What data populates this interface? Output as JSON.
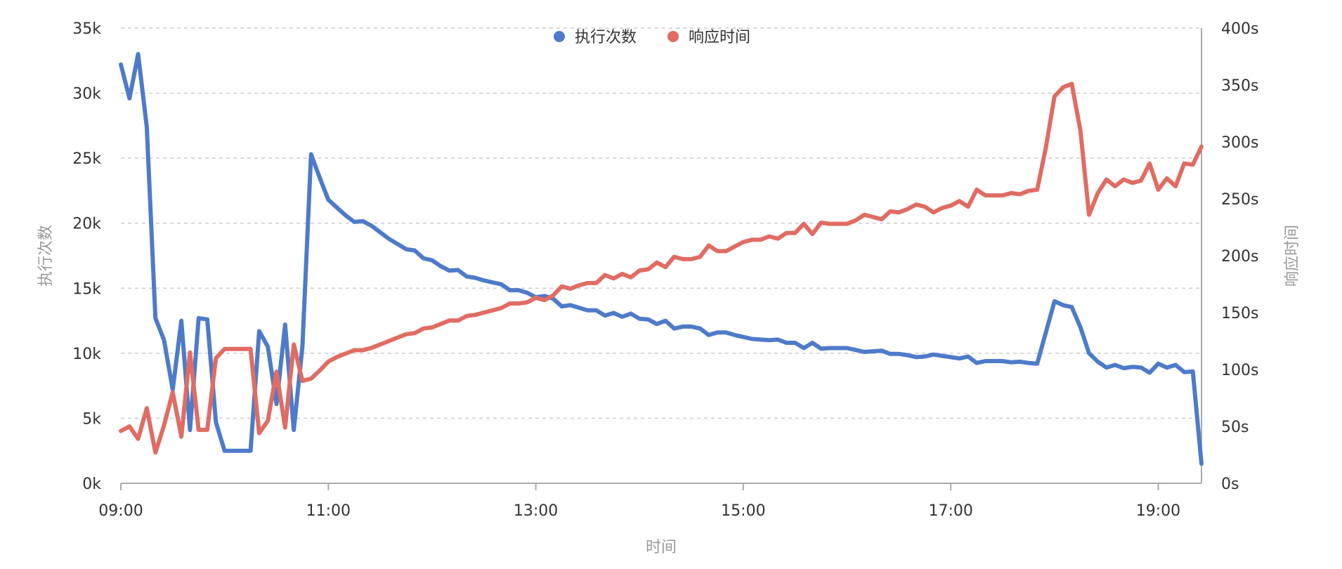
{
  "chart_data": {
    "type": "line",
    "xlabel": "时间",
    "x_ticks": [
      "09:00",
      "11:00",
      "13:00",
      "15:00",
      "17:00",
      "19:00"
    ],
    "xlim": [
      "09:00",
      "19:25"
    ],
    "y_left": {
      "label": "执行次数",
      "ticks": [
        "0k",
        "5k",
        "10k",
        "15k",
        "20k",
        "25k",
        "30k",
        "35k"
      ],
      "ylim": [
        0,
        35000
      ]
    },
    "y_right": {
      "label": "响应时间",
      "ticks": [
        "0s",
        "50s",
        "100s",
        "150s",
        "200s",
        "250s",
        "300s",
        "350s",
        "400s"
      ],
      "ylim": [
        0,
        400
      ]
    },
    "grid": true,
    "legend_position": "top-center",
    "series": [
      {
        "name": "执行次数",
        "axis": "left",
        "color": "#4e7bc9",
        "points": [
          [
            "09:00",
            32200
          ],
          [
            "09:05",
            29600
          ],
          [
            "09:10",
            33000
          ],
          [
            "09:15",
            27400
          ],
          [
            "09:20",
            12700
          ],
          [
            "09:25",
            11000
          ],
          [
            "09:30",
            7200
          ],
          [
            "09:35",
            12500
          ],
          [
            "09:40",
            4100
          ],
          [
            "09:45",
            12700
          ],
          [
            "09:50",
            12600
          ],
          [
            "09:55",
            4700
          ],
          [
            "10:00",
            2500
          ],
          [
            "10:05",
            2500
          ],
          [
            "10:10",
            2500
          ],
          [
            "10:15",
            2500
          ],
          [
            "10:20",
            11700
          ],
          [
            "10:25",
            10500
          ],
          [
            "10:30",
            6100
          ],
          [
            "10:35",
            12200
          ],
          [
            "10:40",
            4100
          ],
          [
            "10:45",
            10500
          ],
          [
            "10:50",
            25300
          ],
          [
            "10:55",
            23500
          ],
          [
            "11:00",
            21800
          ],
          [
            "11:05",
            21200
          ],
          [
            "11:10",
            20600
          ],
          [
            "11:15",
            20100
          ],
          [
            "11:20",
            20150
          ],
          [
            "11:25",
            19800
          ],
          [
            "11:30",
            19300
          ],
          [
            "11:35",
            18800
          ],
          [
            "11:40",
            18400
          ],
          [
            "11:45",
            18000
          ],
          [
            "11:50",
            17900
          ],
          [
            "11:55",
            17300
          ],
          [
            "12:00",
            17150
          ],
          [
            "12:05",
            16700
          ],
          [
            "12:10",
            16350
          ],
          [
            "12:15",
            16400
          ],
          [
            "12:20",
            15900
          ],
          [
            "12:25",
            15800
          ],
          [
            "12:30",
            15600
          ],
          [
            "12:35",
            15450
          ],
          [
            "12:40",
            15300
          ],
          [
            "12:45",
            14850
          ],
          [
            "12:50",
            14850
          ],
          [
            "12:55",
            14650
          ],
          [
            "13:00",
            14300
          ],
          [
            "13:05",
            14400
          ],
          [
            "13:10",
            14200
          ],
          [
            "13:15",
            13600
          ],
          [
            "13:20",
            13700
          ],
          [
            "13:25",
            13500
          ],
          [
            "13:30",
            13300
          ],
          [
            "13:35",
            13300
          ],
          [
            "13:40",
            12900
          ],
          [
            "13:45",
            13100
          ],
          [
            "13:50",
            12800
          ],
          [
            "13:55",
            13050
          ],
          [
            "14:00",
            12650
          ],
          [
            "14:05",
            12600
          ],
          [
            "14:10",
            12250
          ],
          [
            "14:15",
            12500
          ],
          [
            "14:20",
            11900
          ],
          [
            "14:25",
            12050
          ],
          [
            "14:30",
            12050
          ],
          [
            "14:35",
            11900
          ],
          [
            "14:40",
            11400
          ],
          [
            "14:45",
            11600
          ],
          [
            "14:50",
            11600
          ],
          [
            "14:55",
            11400
          ],
          [
            "15:00",
            11250
          ],
          [
            "15:05",
            11100
          ],
          [
            "15:10",
            11050
          ],
          [
            "15:15",
            11000
          ],
          [
            "15:20",
            11050
          ],
          [
            "15:25",
            10800
          ],
          [
            "15:30",
            10800
          ],
          [
            "15:35",
            10400
          ],
          [
            "15:40",
            10800
          ],
          [
            "15:45",
            10350
          ],
          [
            "15:50",
            10400
          ],
          [
            "15:55",
            10400
          ],
          [
            "16:00",
            10400
          ],
          [
            "16:05",
            10250
          ],
          [
            "16:10",
            10100
          ],
          [
            "16:15",
            10150
          ],
          [
            "16:20",
            10200
          ],
          [
            "16:25",
            9950
          ],
          [
            "16:30",
            9950
          ],
          [
            "16:35",
            9850
          ],
          [
            "16:40",
            9700
          ],
          [
            "16:45",
            9750
          ],
          [
            "16:50",
            9900
          ],
          [
            "16:55",
            9800
          ],
          [
            "17:00",
            9700
          ],
          [
            "17:05",
            9600
          ],
          [
            "17:10",
            9750
          ],
          [
            "17:15",
            9250
          ],
          [
            "17:20",
            9400
          ],
          [
            "17:25",
            9400
          ],
          [
            "17:30",
            9400
          ],
          [
            "17:35",
            9300
          ],
          [
            "17:40",
            9350
          ],
          [
            "17:45",
            9250
          ],
          [
            "17:50",
            9200
          ],
          [
            "18:00",
            14000
          ],
          [
            "18:05",
            13700
          ],
          [
            "18:10",
            13550
          ],
          [
            "18:15",
            12000
          ],
          [
            "18:20",
            10000
          ],
          [
            "18:25",
            9350
          ],
          [
            "18:30",
            8900
          ],
          [
            "18:35",
            9100
          ],
          [
            "18:40",
            8850
          ],
          [
            "18:45",
            8950
          ],
          [
            "18:50",
            8900
          ],
          [
            "18:55",
            8500
          ],
          [
            "19:00",
            9200
          ],
          [
            "19:05",
            8900
          ],
          [
            "19:10",
            9100
          ],
          [
            "19:15",
            8550
          ],
          [
            "19:20",
            8600
          ],
          [
            "19:25",
            1500
          ]
        ]
      },
      {
        "name": "响应时间",
        "axis": "right",
        "color": "#e06c63",
        "points": [
          [
            "09:00",
            46
          ],
          [
            "09:05",
            50
          ],
          [
            "09:10",
            39
          ],
          [
            "09:15",
            66
          ],
          [
            "09:20",
            27
          ],
          [
            "09:25",
            51
          ],
          [
            "09:30",
            80
          ],
          [
            "09:35",
            41
          ],
          [
            "09:40",
            115
          ],
          [
            "09:45",
            47
          ],
          [
            "09:50",
            47
          ],
          [
            "09:55",
            110
          ],
          [
            "10:00",
            118
          ],
          [
            "10:05",
            118
          ],
          [
            "10:10",
            118
          ],
          [
            "10:15",
            118
          ],
          [
            "10:20",
            44
          ],
          [
            "10:25",
            55
          ],
          [
            "10:30",
            98
          ],
          [
            "10:35",
            49
          ],
          [
            "10:40",
            122
          ],
          [
            "10:45",
            90
          ],
          [
            "10:50",
            92
          ],
          [
            "10:55",
            99
          ],
          [
            "11:00",
            107
          ],
          [
            "11:05",
            111
          ],
          [
            "11:10",
            114
          ],
          [
            "11:15",
            117
          ],
          [
            "11:20",
            117
          ],
          [
            "11:25",
            119
          ],
          [
            "11:30",
            122
          ],
          [
            "11:35",
            125
          ],
          [
            "11:40",
            128
          ],
          [
            "11:45",
            131
          ],
          [
            "11:50",
            132
          ],
          [
            "11:55",
            136
          ],
          [
            "12:00",
            137
          ],
          [
            "12:05",
            140
          ],
          [
            "12:10",
            143
          ],
          [
            "12:15",
            143
          ],
          [
            "12:20",
            147
          ],
          [
            "12:25",
            148
          ],
          [
            "12:30",
            150
          ],
          [
            "12:35",
            152
          ],
          [
            "12:40",
            154
          ],
          [
            "12:45",
            158
          ],
          [
            "12:50",
            158
          ],
          [
            "12:55",
            159
          ],
          [
            "13:00",
            163
          ],
          [
            "13:05",
            161
          ],
          [
            "13:10",
            165
          ],
          [
            "13:15",
            173
          ],
          [
            "13:20",
            171
          ],
          [
            "13:25",
            174
          ],
          [
            "13:30",
            176
          ],
          [
            "13:35",
            176
          ],
          [
            "13:40",
            183
          ],
          [
            "13:45",
            180
          ],
          [
            "13:50",
            184
          ],
          [
            "13:55",
            181
          ],
          [
            "14:00",
            187
          ],
          [
            "14:05",
            188
          ],
          [
            "14:10",
            194
          ],
          [
            "14:15",
            190
          ],
          [
            "14:20",
            199
          ],
          [
            "14:25",
            197
          ],
          [
            "14:30",
            197
          ],
          [
            "14:35",
            199
          ],
          [
            "14:40",
            209
          ],
          [
            "14:45",
            204
          ],
          [
            "14:50",
            204
          ],
          [
            "14:55",
            208
          ],
          [
            "15:00",
            212
          ],
          [
            "15:05",
            214
          ],
          [
            "15:10",
            214
          ],
          [
            "15:15",
            217
          ],
          [
            "15:20",
            215
          ],
          [
            "15:25",
            220
          ],
          [
            "15:30",
            220
          ],
          [
            "15:35",
            228
          ],
          [
            "15:40",
            219
          ],
          [
            "15:45",
            229
          ],
          [
            "15:50",
            228
          ],
          [
            "15:55",
            228
          ],
          [
            "16:00",
            228
          ],
          [
            "16:05",
            231
          ],
          [
            "16:10",
            236
          ],
          [
            "16:15",
            234
          ],
          [
            "16:20",
            232
          ],
          [
            "16:25",
            239
          ],
          [
            "16:30",
            238
          ],
          [
            "16:35",
            241
          ],
          [
            "16:40",
            245
          ],
          [
            "16:45",
            243
          ],
          [
            "16:50",
            238
          ],
          [
            "16:55",
            242
          ],
          [
            "17:00",
            244
          ],
          [
            "17:05",
            248
          ],
          [
            "17:10",
            243
          ],
          [
            "17:15",
            258
          ],
          [
            "17:20",
            253
          ],
          [
            "17:25",
            253
          ],
          [
            "17:30",
            253
          ],
          [
            "17:35",
            255
          ],
          [
            "17:40",
            254
          ],
          [
            "17:45",
            257
          ],
          [
            "17:50",
            258
          ],
          [
            "17:55",
            295
          ],
          [
            "18:00",
            340
          ],
          [
            "18:05",
            348
          ],
          [
            "18:10",
            351
          ],
          [
            "18:15",
            310
          ],
          [
            "18:20",
            236
          ],
          [
            "18:25",
            255
          ],
          [
            "18:30",
            267
          ],
          [
            "18:35",
            261
          ],
          [
            "18:40",
            267
          ],
          [
            "18:45",
            264
          ],
          [
            "18:50",
            266
          ],
          [
            "18:55",
            281
          ],
          [
            "19:00",
            258
          ],
          [
            "19:05",
            268
          ],
          [
            "19:10",
            261
          ],
          [
            "19:15",
            281
          ],
          [
            "19:20",
            280
          ],
          [
            "19:25",
            296
          ]
        ]
      }
    ]
  }
}
